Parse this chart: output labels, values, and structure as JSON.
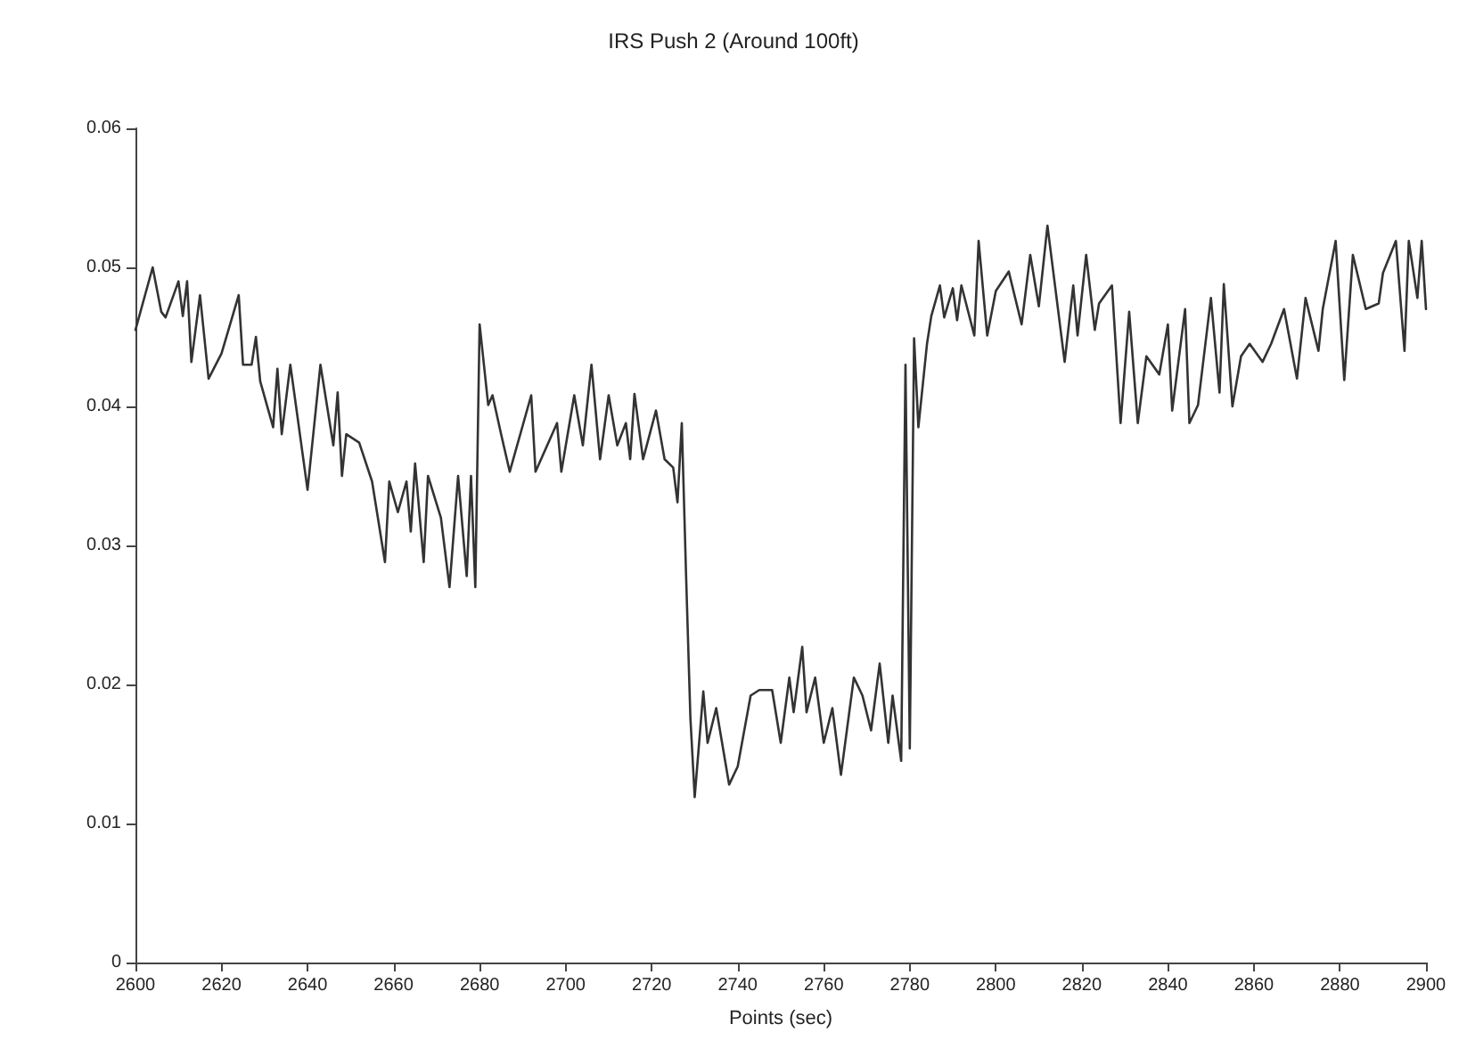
{
  "chart_data": {
    "type": "line",
    "title": "IRS Push 2 (Around 100ft)",
    "xlabel": "Points (sec)",
    "xlim": [
      2600,
      2900
    ],
    "xticks": [
      2600,
      2620,
      2640,
      2660,
      2680,
      2700,
      2720,
      2740,
      2760,
      2780,
      2800,
      2820,
      2840,
      2860,
      2880,
      2900
    ],
    "ylim": [
      0,
      0.06
    ],
    "yticks": [
      0,
      0.01,
      0.02,
      0.03,
      0.04,
      0.05,
      0.06
    ],
    "grid": false,
    "marker": "none",
    "line_style": "solid",
    "series": [
      {
        "color": "#333333",
        "x": [
          2600,
          2604,
          2606,
          2607,
          2610,
          2611,
          2612,
          2613,
          2615,
          2617,
          2620,
          2624,
          2625,
          2627,
          2628,
          2629,
          2632,
          2633,
          2634,
          2636,
          2640,
          2643,
          2646,
          2647,
          2648,
          2649,
          2652,
          2655,
          2658,
          2659,
          2661,
          2663,
          2664,
          2665,
          2667,
          2668,
          2671,
          2673,
          2675,
          2677,
          2678,
          2679,
          2680,
          2682,
          2683,
          2685,
          2687,
          2692,
          2693,
          2698,
          2699,
          2702,
          2704,
          2706,
          2708,
          2710,
          2712,
          2714,
          2715,
          2716,
          2718,
          2721,
          2723,
          2725,
          2726,
          2727,
          2728,
          2729,
          2730,
          2732,
          2733,
          2735,
          2738,
          2740,
          2743,
          2745,
          2748,
          2750,
          2752,
          2753,
          2755,
          2756,
          2758,
          2760,
          2762,
          2764,
          2767,
          2769,
          2771,
          2773,
          2775,
          2776,
          2778,
          2779,
          2780,
          2781,
          2782,
          2784,
          2785,
          2787,
          2788,
          2790,
          2791,
          2792,
          2795,
          2796,
          2798,
          2800,
          2803,
          2806,
          2808,
          2810,
          2812,
          2816,
          2818,
          2819,
          2821,
          2823,
          2824,
          2827,
          2829,
          2831,
          2833,
          2835,
          2838,
          2840,
          2841,
          2844,
          2845,
          2847,
          2850,
          2852,
          2853,
          2855,
          2857,
          2859,
          2862,
          2864,
          2867,
          2870,
          2872,
          2875,
          2876,
          2879,
          2881,
          2883,
          2886,
          2889,
          2890,
          2893,
          2895,
          2896,
          2898,
          2899,
          2900
        ],
        "values": [
          0.0455,
          0.05,
          0.0468,
          0.0464,
          0.049,
          0.0465,
          0.049,
          0.0432,
          0.048,
          0.042,
          0.0438,
          0.048,
          0.043,
          0.043,
          0.045,
          0.0418,
          0.0385,
          0.0427,
          0.038,
          0.043,
          0.034,
          0.043,
          0.0372,
          0.041,
          0.035,
          0.038,
          0.0374,
          0.0346,
          0.0288,
          0.0346,
          0.0324,
          0.0346,
          0.031,
          0.0359,
          0.0288,
          0.035,
          0.032,
          0.027,
          0.035,
          0.0278,
          0.035,
          0.027,
          0.0459,
          0.0401,
          0.0408,
          0.038,
          0.0353,
          0.0408,
          0.0353,
          0.0388,
          0.0353,
          0.0408,
          0.0372,
          0.043,
          0.0362,
          0.0408,
          0.0372,
          0.0388,
          0.0362,
          0.0409,
          0.0362,
          0.0397,
          0.0362,
          0.0356,
          0.0331,
          0.0388,
          0.0278,
          0.0176,
          0.0119,
          0.0195,
          0.0158,
          0.0183,
          0.0128,
          0.0141,
          0.0192,
          0.0196,
          0.0196,
          0.0158,
          0.0205,
          0.018,
          0.0227,
          0.018,
          0.0205,
          0.0158,
          0.0183,
          0.0135,
          0.0205,
          0.0192,
          0.0167,
          0.0215,
          0.0158,
          0.0192,
          0.0145,
          0.043,
          0.0154,
          0.0449,
          0.0385,
          0.0445,
          0.0465,
          0.0487,
          0.0464,
          0.0485,
          0.0462,
          0.0487,
          0.0451,
          0.0519,
          0.0451,
          0.0483,
          0.0497,
          0.0459,
          0.0509,
          0.0472,
          0.053,
          0.0432,
          0.0487,
          0.0451,
          0.0509,
          0.0455,
          0.0474,
          0.0487,
          0.0388,
          0.0468,
          0.0388,
          0.0436,
          0.0423,
          0.0459,
          0.0397,
          0.047,
          0.0388,
          0.0401,
          0.0478,
          0.041,
          0.0488,
          0.04,
          0.0436,
          0.0445,
          0.0432,
          0.0445,
          0.047,
          0.042,
          0.0478,
          0.044,
          0.047,
          0.0519,
          0.0419,
          0.0509,
          0.047,
          0.0474,
          0.0496,
          0.0519,
          0.044,
          0.0519,
          0.0478,
          0.0519,
          0.047
        ]
      }
    ]
  }
}
